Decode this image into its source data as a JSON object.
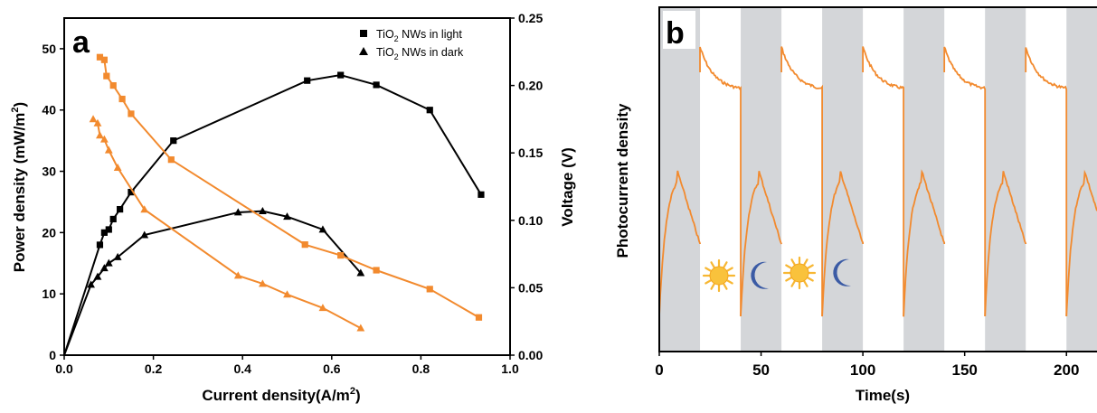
{
  "chart_data": [
    {
      "panel": "a",
      "type": "line",
      "xlabel": "Current density(A/m²)",
      "ylabel": "Power density (mW/m²)",
      "y2label": "Voltage (V)",
      "xlim": [
        0,
        1.0
      ],
      "ylim": [
        0,
        55
      ],
      "y2lim": [
        0,
        0.25
      ],
      "xticks": [
        "0.0",
        "0.2",
        "0.4",
        "0.6",
        "0.8",
        "1.0"
      ],
      "yticks": [
        "0",
        "10",
        "20",
        "30",
        "40",
        "50"
      ],
      "y2ticks": [
        "0.00",
        "0.05",
        "0.10",
        "0.15",
        "0.20",
        "0.25"
      ],
      "grid": false,
      "legend_position": "top-right",
      "legend": [
        {
          "label": "TiO",
          "sub": "2",
          "rest": " NWs in light",
          "marker": "square"
        },
        {
          "label": "TiO",
          "sub": "2",
          "rest": " NWs in dark",
          "marker": "triangle"
        }
      ],
      "colors": {
        "power": "#000000",
        "voltage": "#f28a2e"
      },
      "series": [
        {
          "name": "TiO2 NWs in light",
          "quantity": "power",
          "marker": "square",
          "axis": "left",
          "x": [
            0.0,
            0.08,
            0.09,
            0.1,
            0.11,
            0.125,
            0.15,
            0.245,
            0.545,
            0.62,
            0.7,
            0.82,
            0.935
          ],
          "y": [
            0,
            18,
            20,
            20.5,
            22.2,
            23.8,
            26.6,
            35,
            44.8,
            45.7,
            44.1,
            40,
            26.2
          ]
        },
        {
          "name": "TiO2 NWs in dark",
          "quantity": "power",
          "marker": "triangle",
          "axis": "left",
          "x": [
            0.0,
            0.06,
            0.075,
            0.09,
            0.1,
            0.12,
            0.18,
            0.39,
            0.445,
            0.5,
            0.58,
            0.665
          ],
          "y": [
            0,
            11.5,
            12.8,
            14.2,
            15,
            16,
            19.6,
            23.3,
            23.5,
            22.6,
            20.5,
            13.4
          ]
        },
        {
          "name": "TiO2 NWs in light",
          "quantity": "voltage",
          "marker": "square",
          "axis": "right",
          "x": [
            0.08,
            0.09,
            0.095,
            0.11,
            0.13,
            0.15,
            0.24,
            0.54,
            0.62,
            0.7,
            0.82,
            0.93
          ],
          "y": [
            0.221,
            0.219,
            0.207,
            0.2,
            0.19,
            0.179,
            0.145,
            0.082,
            0.074,
            0.063,
            0.049,
            0.028
          ]
        },
        {
          "name": "TiO2 NWs in dark",
          "quantity": "voltage",
          "marker": "triangle",
          "axis": "right",
          "x": [
            0.065,
            0.075,
            0.08,
            0.09,
            0.1,
            0.12,
            0.18,
            0.39,
            0.445,
            0.5,
            0.58,
            0.665
          ],
          "y": [
            0.175,
            0.172,
            0.163,
            0.16,
            0.152,
            0.139,
            0.108,
            0.059,
            0.053,
            0.045,
            0.035,
            0.02
          ]
        }
      ]
    },
    {
      "panel": "b",
      "type": "line",
      "xlabel": "Time(s)",
      "ylabel": "Photocurrent density",
      "xlim": [
        0,
        215
      ],
      "xticks": [
        "0",
        "50",
        "100",
        "150",
        "200"
      ],
      "grid": false,
      "shaded_intervals": [
        [
          0,
          20
        ],
        [
          40,
          60
        ],
        [
          80,
          100
        ],
        [
          120,
          140
        ],
        [
          160,
          180
        ],
        [
          200,
          215
        ]
      ],
      "shade_color": "#d4d6d9",
      "line_color": "#f28a2e",
      "icons": [
        "sun-icon",
        "moon-icon",
        "sun-icon",
        "moon-icon"
      ],
      "note": "square-wave photoresponse: upper trace jumps high at light-off edges and decays; lower trace rises during shaded intervals and drops at their end"
    }
  ]
}
